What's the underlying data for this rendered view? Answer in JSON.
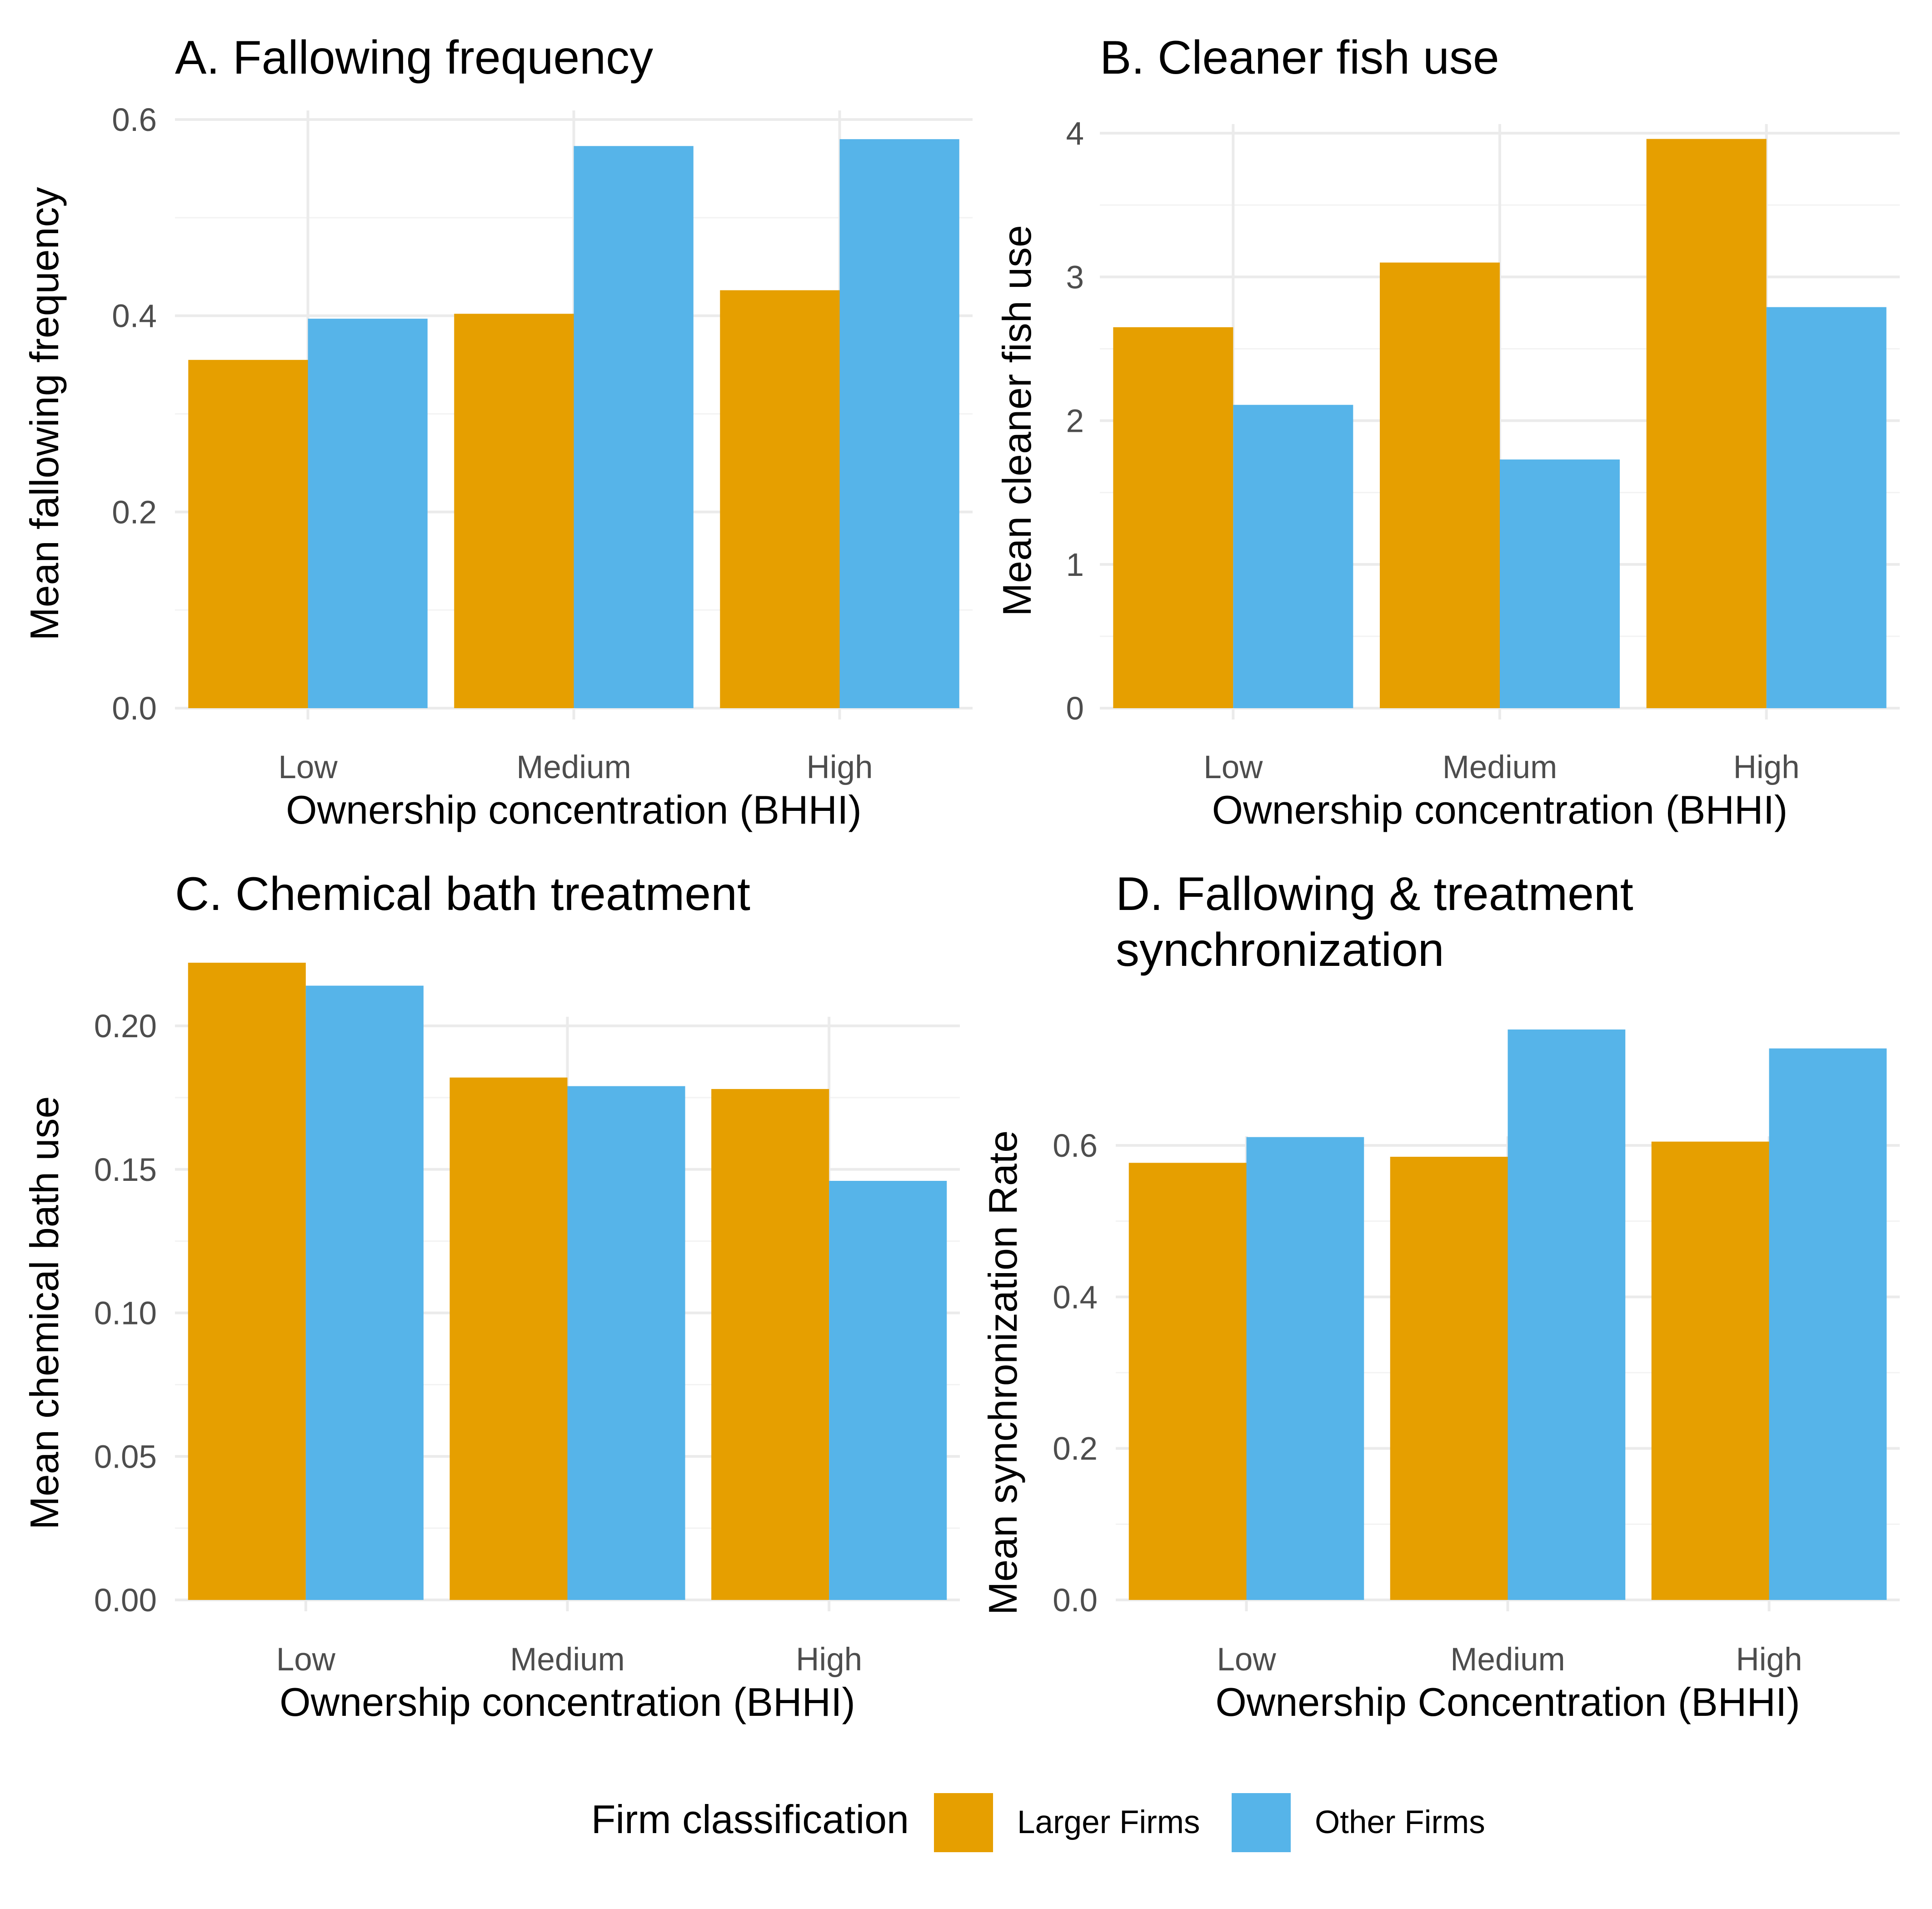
{
  "figure": {
    "legend": {
      "title": "Firm classification",
      "position": "bottom",
      "items": [
        {
          "label": "Larger Firms",
          "color": "#E69F00"
        },
        {
          "label": "Other Firms",
          "color": "#56B4E9"
        }
      ]
    }
  },
  "chart_data": [
    {
      "type": "bar",
      "title": "A. Fallowing frequency",
      "xlabel": "Ownership concentration (BHHI)",
      "ylabel": "Mean fallowing frequency",
      "categories": [
        "Low",
        "Medium",
        "High"
      ],
      "series": [
        {
          "name": "Larger Firms",
          "values": [
            0.355,
            0.402,
            0.426
          ]
        },
        {
          "name": "Other Firms",
          "values": [
            0.397,
            0.573,
            0.58
          ]
        }
      ],
      "ylim": [
        0,
        0.6
      ],
      "yticks": [
        0.0,
        0.2,
        0.4,
        0.6
      ],
      "ytick_labels": [
        "0.0",
        "0.2",
        "0.4",
        "0.6"
      ],
      "grid": true
    },
    {
      "type": "bar",
      "title": "B. Cleaner fish use",
      "xlabel": "Ownership concentration (BHHI)",
      "ylabel": "Mean cleaner fish use",
      "categories": [
        "Low",
        "Medium",
        "High"
      ],
      "series": [
        {
          "name": "Larger Firms",
          "values": [
            2.65,
            3.1,
            3.96
          ]
        },
        {
          "name": "Other Firms",
          "values": [
            2.11,
            1.73,
            2.79
          ]
        }
      ],
      "ylim": [
        0,
        4
      ],
      "yticks": [
        0,
        1,
        2,
        3,
        4
      ],
      "ytick_labels": [
        "0",
        "1",
        "2",
        "3",
        "4"
      ],
      "grid": true
    },
    {
      "type": "bar",
      "title": "C. Chemical bath treatment",
      "xlabel": "Ownership concentration (BHHI)",
      "ylabel": "Mean chemical bath use",
      "categories": [
        "Low",
        "Medium",
        "High"
      ],
      "series": [
        {
          "name": "Larger Firms",
          "values": [
            0.222,
            0.182,
            0.178
          ]
        },
        {
          "name": "Other Firms",
          "values": [
            0.214,
            0.179,
            0.146
          ]
        }
      ],
      "ylim": [
        0,
        0.22
      ],
      "yticks": [
        0.0,
        0.05,
        0.1,
        0.15,
        0.2
      ],
      "ytick_labels": [
        "0.00",
        "0.05",
        "0.10",
        "0.15",
        "0.20"
      ],
      "grid": true
    },
    {
      "type": "bar",
      "title": "D. Fallowing & treatment synchronization",
      "title_lines": [
        "D. Fallowing & treatment",
        "synchronization"
      ],
      "xlabel": "Ownership Concentration (BHHI)",
      "ylabel": "Mean synchronization Rate",
      "categories": [
        "Low",
        "Medium",
        "High"
      ],
      "series": [
        {
          "name": "Larger Firms",
          "values": [
            0.577,
            0.585,
            0.605
          ]
        },
        {
          "name": "Other Firms",
          "values": [
            0.611,
            0.753,
            0.728
          ]
        }
      ],
      "ylim": [
        0,
        0.75
      ],
      "yticks": [
        0.0,
        0.2,
        0.4,
        0.6
      ],
      "ytick_labels": [
        "0.0",
        "0.2",
        "0.4",
        "0.6"
      ],
      "grid": true
    }
  ]
}
